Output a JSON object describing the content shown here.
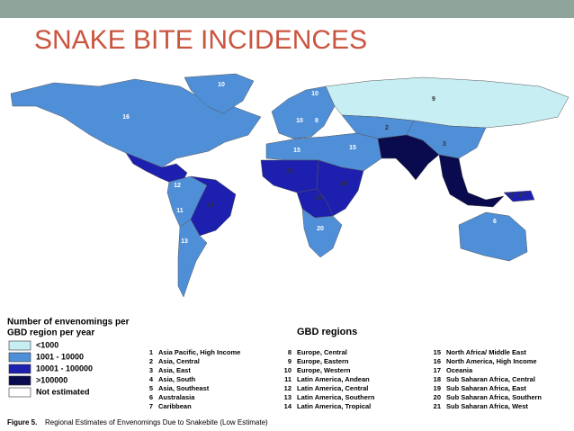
{
  "header": {
    "title": "SNAKE BITE INCIDENCES"
  },
  "map": {
    "labels": [
      "10",
      "16",
      "9",
      "10",
      "10",
      "8",
      "2",
      "15",
      "15",
      "3",
      "21",
      "19",
      "18",
      "12",
      "11",
      "14",
      "20",
      "13",
      "6",
      "17",
      "17"
    ]
  },
  "legend": {
    "title_line1": "Number of envenomings per",
    "title_line2": "GBD region per year",
    "items": [
      {
        "label": "<1000",
        "color": "#c6eef3"
      },
      {
        "label": "1001 - 10000",
        "color": "#4f8fd8"
      },
      {
        "label": "10001 - 100000",
        "color": "#1d1fae"
      },
      {
        "label": ">100000",
        "color": "#0a0a4e"
      },
      {
        "label": "Not estimated",
        "color": "#ffffff"
      }
    ]
  },
  "regions": {
    "heading": "GBD regions",
    "items": [
      {
        "number": "1",
        "name": "Asia Pacific, High Income"
      },
      {
        "number": "2",
        "name": "Asia, Central"
      },
      {
        "number": "3",
        "name": "Asia, East"
      },
      {
        "number": "4",
        "name": "Asia, South"
      },
      {
        "number": "5",
        "name": "Asia, Southeast"
      },
      {
        "number": "6",
        "name": "Australasia"
      },
      {
        "number": "7",
        "name": "Caribbean"
      },
      {
        "number": "8",
        "name": "Europe, Central"
      },
      {
        "number": "9",
        "name": "Europe, Eastern"
      },
      {
        "number": "10",
        "name": "Europe, Western"
      },
      {
        "number": "11",
        "name": "Latin America, Andean"
      },
      {
        "number": "12",
        "name": "Latin America, Central"
      },
      {
        "number": "13",
        "name": "Latin America, Southern"
      },
      {
        "number": "14",
        "name": "Latin America, Tropical"
      },
      {
        "number": "15",
        "name": "North Africa/ Middle East"
      },
      {
        "number": "16",
        "name": "North America, High Income"
      },
      {
        "number": "17",
        "name": "Oceania"
      },
      {
        "number": "18",
        "name": "Sub Saharan Africa, Central"
      },
      {
        "number": "19",
        "name": "Sub Saharan Africa, East"
      },
      {
        "number": "20",
        "name": "Sub Saharan Africa, Southern"
      },
      {
        "number": "21",
        "name": "Sub Saharan Africa, West"
      }
    ]
  },
  "caption": {
    "label": "Figure 5.",
    "text": "Regional Estimates of Envenomings Due to Snakebite (Low Estimate)"
  }
}
